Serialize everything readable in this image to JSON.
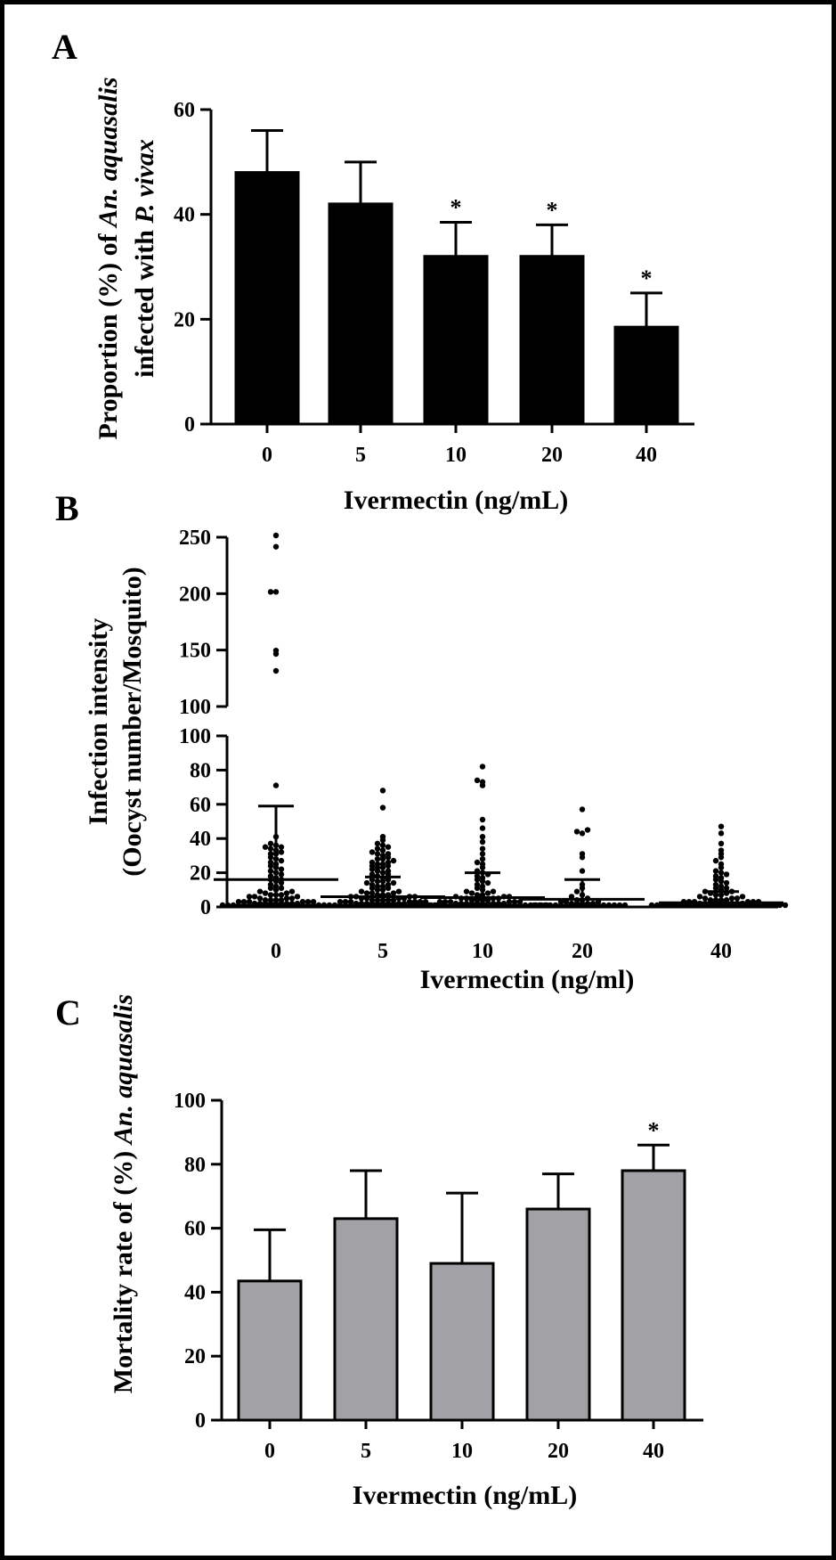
{
  "chart_data": [
    {
      "panel": "A",
      "type": "bar",
      "xlabel": "Ivermectin (ng/mL)",
      "ylabel_parts": [
        {
          "line": 1,
          "text": "Proportion (%) of ",
          "italic": false
        },
        {
          "line": 1,
          "text": "An. aquasalis",
          "italic": true
        },
        {
          "line": 2,
          "text": "infected with ",
          "italic": false
        },
        {
          "line": 2,
          "text": "P. vivax",
          "italic": true
        }
      ],
      "categories": [
        "0",
        "5",
        "10",
        "20",
        "40"
      ],
      "values": [
        48,
        42,
        32,
        32,
        18.5
      ],
      "error_upper": [
        56,
        50,
        38.5,
        38,
        25
      ],
      "significance": [
        "",
        "",
        "*",
        "*",
        "*"
      ],
      "ylim": [
        0,
        60
      ],
      "yticks": [
        0,
        20,
        40,
        60
      ],
      "bar_color": "#000000"
    },
    {
      "panel": "B",
      "type": "scatter",
      "xlabel": "Ivermectin (ng/ml)",
      "ylabel": [
        "Infection intensity",
        "(Oocyst number/Mosquito)"
      ],
      "categories": [
        "0",
        "5",
        "10",
        "20",
        "40"
      ],
      "broken_axis": {
        "lower": {
          "ylim": [
            0,
            100
          ],
          "yticks": [
            0,
            20,
            40,
            60,
            80,
            100
          ]
        },
        "upper": {
          "ylim": [
            100,
            250
          ],
          "yticks": [
            100,
            150,
            200,
            250
          ]
        }
      },
      "medians": [
        16,
        6,
        5.5,
        4.5,
        2.5
      ],
      "error_upper": [
        59,
        17.5,
        20,
        16,
        9
      ],
      "points": [
        [
          0,
          0,
          0,
          0,
          0,
          0,
          0,
          0,
          0,
          0,
          0,
          0,
          0,
          0,
          0,
          0,
          0,
          0,
          0,
          0,
          1,
          1,
          1,
          1,
          1,
          1,
          1,
          1,
          1,
          2,
          2,
          2,
          2,
          2,
          2,
          3,
          3,
          3,
          3,
          4,
          4,
          4,
          5,
          5,
          5,
          6,
          6,
          6,
          7,
          7,
          8,
          8,
          9,
          10,
          10,
          11,
          12,
          13,
          14,
          15,
          15,
          16,
          17,
          18,
          19,
          20,
          21,
          22,
          23,
          24,
          25,
          26,
          27,
          28,
          30,
          30,
          31,
          32,
          33,
          34,
          34,
          35,
          36,
          40,
          70,
          130,
          145,
          148,
          200,
          200,
          240,
          250
        ],
        [
          0,
          0,
          0,
          0,
          0,
          0,
          0,
          0,
          0,
          0,
          0,
          0,
          0,
          0,
          0,
          0,
          0,
          0,
          0,
          0,
          0,
          0,
          0,
          0,
          1,
          1,
          1,
          1,
          1,
          1,
          1,
          1,
          1,
          1,
          2,
          2,
          2,
          2,
          2,
          2,
          2,
          3,
          3,
          3,
          3,
          3,
          4,
          4,
          4,
          4,
          5,
          5,
          5,
          5,
          6,
          6,
          6,
          7,
          7,
          7,
          8,
          8,
          9,
          9,
          10,
          10,
          11,
          11,
          12,
          12,
          13,
          13,
          14,
          14,
          15,
          15,
          16,
          17,
          18,
          18,
          19,
          20,
          20,
          21,
          22,
          22,
          23,
          23,
          24,
          24,
          25,
          25,
          26,
          27,
          27,
          28,
          29,
          30,
          30,
          31,
          32,
          33,
          34,
          35,
          36,
          38,
          40,
          57,
          67
        ],
        [
          0,
          0,
          0,
          0,
          0,
          0,
          0,
          0,
          0,
          0,
          0,
          0,
          0,
          0,
          0,
          0,
          0,
          0,
          0,
          0,
          0,
          0,
          0,
          0,
          0,
          0,
          1,
          1,
          1,
          1,
          1,
          1,
          1,
          1,
          1,
          1,
          2,
          2,
          2,
          2,
          2,
          2,
          3,
          3,
          3,
          3,
          4,
          4,
          4,
          4,
          5,
          5,
          5,
          6,
          6,
          7,
          7,
          8,
          8,
          9,
          10,
          11,
          12,
          13,
          14,
          15,
          16,
          17,
          18,
          19,
          20,
          22,
          24,
          25,
          27,
          30,
          33,
          37,
          40,
          45,
          50,
          70,
          72,
          73,
          81
        ],
        [
          0,
          0,
          0,
          0,
          0,
          0,
          0,
          0,
          0,
          0,
          0,
          0,
          0,
          0,
          0,
          0,
          0,
          0,
          1,
          1,
          1,
          1,
          1,
          2,
          2,
          2,
          3,
          3,
          4,
          5,
          6,
          8,
          10,
          12,
          20,
          28,
          30,
          42,
          43,
          44,
          56
        ],
        [
          0,
          0,
          0,
          0,
          0,
          0,
          0,
          0,
          0,
          0,
          0,
          0,
          0,
          0,
          0,
          0,
          0,
          0,
          0,
          0,
          0,
          0,
          0,
          0,
          0,
          0,
          1,
          1,
          1,
          1,
          1,
          1,
          1,
          1,
          1,
          2,
          2,
          2,
          2,
          2,
          2,
          3,
          3,
          3,
          3,
          4,
          4,
          4,
          5,
          5,
          6,
          6,
          7,
          7,
          8,
          8,
          9,
          10,
          10,
          11,
          12,
          13,
          14,
          15,
          16,
          17,
          18,
          19,
          20,
          22,
          24,
          26,
          28,
          30,
          32,
          36,
          42,
          46
        ]
      ]
    },
    {
      "panel": "C",
      "type": "bar",
      "xlabel": "Ivermectin  (ng/mL)",
      "ylabel_parts": [
        {
          "line": 1,
          "text": "Mortality rate of (%) ",
          "italic": false
        },
        {
          "line": 1,
          "text": "An. aquasalis",
          "italic": true
        }
      ],
      "categories": [
        "0",
        "5",
        "10",
        "20",
        "40"
      ],
      "values": [
        43.5,
        63,
        49,
        66,
        78
      ],
      "error_upper": [
        59.5,
        78,
        71,
        77,
        86
      ],
      "significance": [
        "",
        "",
        "",
        "",
        "*"
      ],
      "ylim": [
        0,
        100
      ],
      "yticks": [
        0,
        20,
        40,
        60,
        80,
        100
      ],
      "bar_color": "#a2a1a6"
    }
  ]
}
